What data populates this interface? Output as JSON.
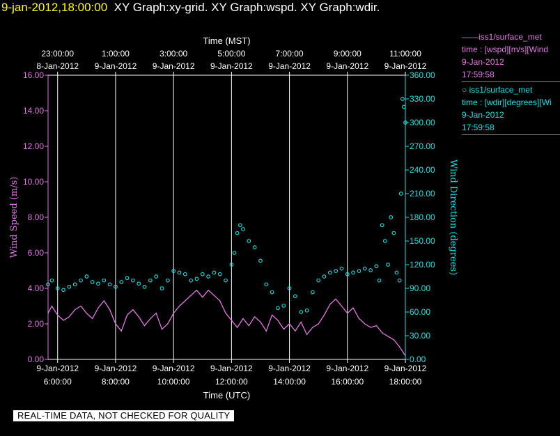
{
  "header": {
    "datetime": "9-jan-2012,18:00:00",
    "graphs": "XY Graph:xy-grid.  XY Graph:wspd.  XY Graph:wdir."
  },
  "banner": "REAL-TIME DATA, NOT CHECKED FOR QUALITY",
  "legend": {
    "wspd": {
      "line1": "——iss1/surface_met",
      "line2": "time : [wspd][m/s][Wind",
      "line3": "9-Jan-2012",
      "line4": "17:59:58"
    },
    "wdir": {
      "line1": "○ iss1/surface_met",
      "line2": "time : [wdir][degrees][Wi",
      "line3": "9-Jan-2012",
      "line4": "17:59:58"
    }
  },
  "colors": {
    "wspd": "#e27ae2",
    "wdir": "#19e3e3",
    "axes_left": "#e27ae2",
    "axes_right": "#19e3e3",
    "grid": "#ffffff"
  },
  "chart_data": {
    "type": "line",
    "xlabel_bottom": "Time (UTC)",
    "xlabel_top": "Time (MST)",
    "ylabel_left": "Wind Speed (m/s)",
    "ylabel_right": "Wind Direction (degrees)",
    "xlim_utc_hours": [
      5.67,
      18.0
    ],
    "ylim_left": [
      0,
      16
    ],
    "ylim_right": [
      0,
      360
    ],
    "grid": "vertical",
    "legend_position": "right",
    "x_ticks_bottom": [
      {
        "hour": 6,
        "date": "9-Jan-2012",
        "time": "6:00:00"
      },
      {
        "hour": 8,
        "date": "9-Jan-2012",
        "time": "8:00:00"
      },
      {
        "hour": 10,
        "date": "9-Jan-2012",
        "time": "10:00:00"
      },
      {
        "hour": 12,
        "date": "9-Jan-2012",
        "time": "12:00:00"
      },
      {
        "hour": 14,
        "date": "9-Jan-2012",
        "time": "14:00:00"
      },
      {
        "hour": 16,
        "date": "9-Jan-2012",
        "time": "16:00:00"
      },
      {
        "hour": 18,
        "date": "9-Jan-2012",
        "time": "18:00:00"
      }
    ],
    "x_ticks_top": [
      {
        "hour": 6,
        "time": "23:00:00",
        "date": "8-Jan-2012"
      },
      {
        "hour": 8,
        "time": "1:00:00",
        "date": "9-Jan-2012"
      },
      {
        "hour": 10,
        "time": "3:00:00",
        "date": "9-Jan-2012"
      },
      {
        "hour": 12,
        "time": "5:00:00",
        "date": "9-Jan-2012"
      },
      {
        "hour": 14,
        "time": "7:00:00",
        "date": "9-Jan-2012"
      },
      {
        "hour": 16,
        "time": "9:00:00",
        "date": "9-Jan-2012"
      },
      {
        "hour": 18,
        "time": "11:00:00",
        "date": "9-Jan-2012"
      }
    ],
    "y_ticks_left": [
      "0.00",
      "2.00",
      "4.00",
      "6.00",
      "8.00",
      "10.00",
      "12.00",
      "14.00",
      "16.00"
    ],
    "y_ticks_right": [
      "0.00",
      "30.00",
      "60.00",
      "90.00",
      "120.00",
      "150.00",
      "180.00",
      "210.00",
      "240.00",
      "270.00",
      "300.00",
      "330.00",
      "360.00"
    ],
    "series": [
      {
        "name": "iss1/surface_met",
        "axis": "left",
        "style": "line",
        "x": [
          5.67,
          5.8,
          6.0,
          6.2,
          6.4,
          6.6,
          6.8,
          7.0,
          7.2,
          7.4,
          7.6,
          7.8,
          8.0,
          8.2,
          8.4,
          8.6,
          8.8,
          9.0,
          9.2,
          9.4,
          9.6,
          9.8,
          10.0,
          10.2,
          10.4,
          10.6,
          10.8,
          11.0,
          11.2,
          11.4,
          11.6,
          11.8,
          12.0,
          12.2,
          12.4,
          12.6,
          12.8,
          13.0,
          13.2,
          13.4,
          13.6,
          13.8,
          14.0,
          14.2,
          14.4,
          14.6,
          14.8,
          15.0,
          15.2,
          15.4,
          15.6,
          15.8,
          16.0,
          16.2,
          16.4,
          16.6,
          16.8,
          17.0,
          17.2,
          17.4,
          17.6,
          17.8,
          18.0
        ],
        "y": [
          2.6,
          3.0,
          2.5,
          2.2,
          2.4,
          2.8,
          3.0,
          2.6,
          2.3,
          2.9,
          3.3,
          2.8,
          2.0,
          1.6,
          2.5,
          2.8,
          2.4,
          1.9,
          2.3,
          2.6,
          1.7,
          2.0,
          2.6,
          3.0,
          3.3,
          3.6,
          3.9,
          3.5,
          3.9,
          3.6,
          3.3,
          2.6,
          2.2,
          1.8,
          2.3,
          1.9,
          2.4,
          2.1,
          1.6,
          2.5,
          2.2,
          1.7,
          2.0,
          1.6,
          2.1,
          1.4,
          1.8,
          2.0,
          2.5,
          3.1,
          3.4,
          3.0,
          2.6,
          2.9,
          2.3,
          2.0,
          1.8,
          1.9,
          1.5,
          1.3,
          1.1,
          0.7,
          0.2
        ]
      },
      {
        "name": "iss1/surface_met",
        "axis": "right",
        "style": "scatter",
        "x": [
          5.67,
          5.8,
          6.0,
          6.2,
          6.4,
          6.6,
          6.8,
          7.0,
          7.2,
          7.4,
          7.6,
          7.8,
          8.0,
          8.2,
          8.4,
          8.6,
          8.8,
          9.0,
          9.2,
          9.4,
          9.6,
          9.8,
          10.0,
          10.2,
          10.4,
          10.6,
          10.8,
          11.0,
          11.2,
          11.4,
          11.6,
          11.8,
          12.0,
          12.1,
          12.2,
          12.3,
          12.4,
          12.6,
          12.8,
          13.0,
          13.2,
          13.4,
          13.6,
          13.8,
          14.0,
          14.2,
          14.4,
          14.6,
          14.8,
          15.0,
          15.2,
          15.4,
          15.6,
          15.8,
          16.0,
          16.2,
          16.4,
          16.6,
          16.8,
          17.0,
          17.1,
          17.2,
          17.3,
          17.4,
          17.5,
          17.6,
          17.7,
          17.8,
          17.85,
          17.9,
          17.95,
          18.0
        ],
        "y": [
          95,
          100,
          90,
          88,
          92,
          95,
          100,
          105,
          98,
          96,
          100,
          95,
          92,
          98,
          103,
          100,
          96,
          92,
          100,
          105,
          90,
          100,
          112,
          110,
          108,
          100,
          102,
          108,
          105,
          110,
          108,
          100,
          120,
          135,
          160,
          170,
          165,
          150,
          142,
          125,
          95,
          85,
          65,
          68,
          90,
          80,
          60,
          62,
          85,
          100,
          105,
          110,
          112,
          115,
          108,
          110,
          112,
          115,
          113,
          118,
          100,
          170,
          150,
          120,
          180,
          160,
          110,
          100,
          210,
          330,
          320,
          300
        ]
      }
    ]
  }
}
